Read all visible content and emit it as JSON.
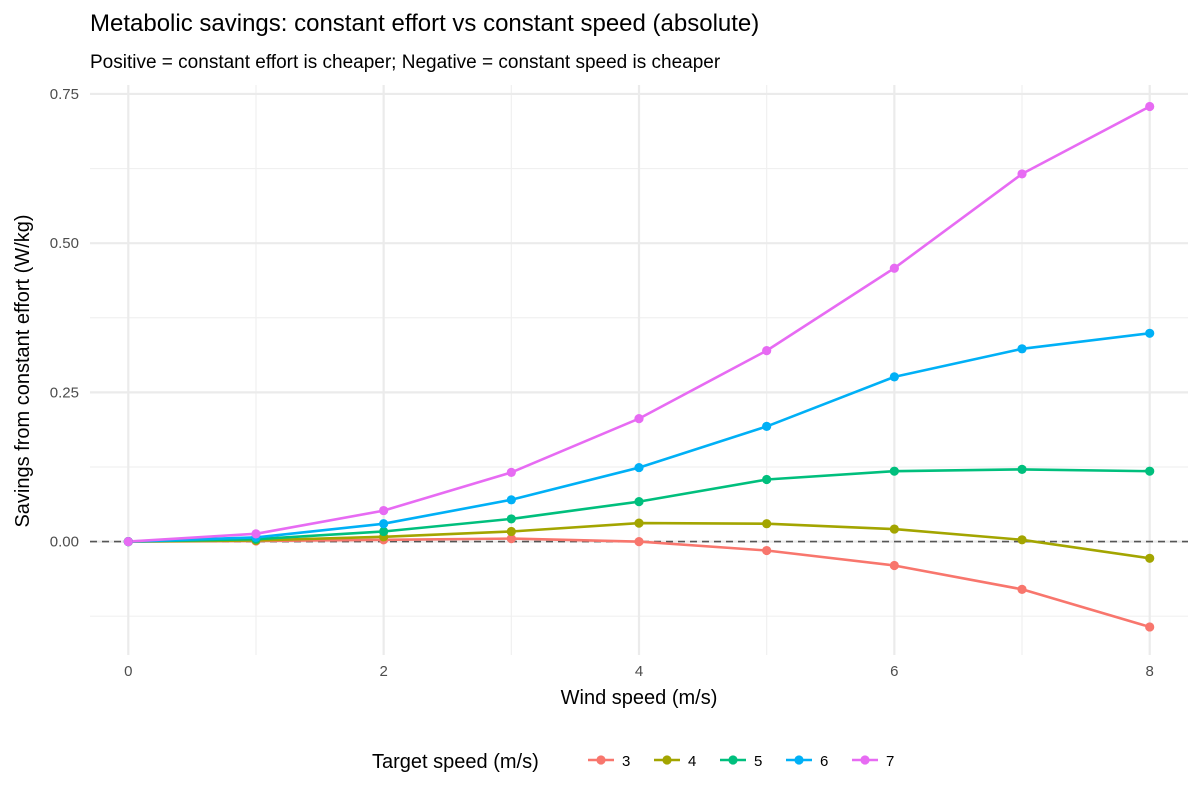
{
  "chart_data": {
    "type": "line",
    "title": "Metabolic savings: constant effort vs constant speed (absolute)",
    "subtitle": "Positive = constant effort is cheaper; Negative = constant speed is cheaper",
    "xlabel": "Wind speed (m/s)",
    "ylabel": "Savings from constant effort (W/kg)",
    "xlim": [
      -0.3,
      8.3
    ],
    "ylim": [
      -0.19,
      0.765
    ],
    "x_ticks": [
      0,
      2,
      4,
      6,
      8
    ],
    "x_tick_labels": [
      "0",
      "2",
      "4",
      "6",
      "8"
    ],
    "y_ticks": [
      0.0,
      0.25,
      0.5,
      0.75
    ],
    "y_tick_labels": [
      "0.00",
      "0.25",
      "0.50",
      "0.75"
    ],
    "reference_line": {
      "y": 0,
      "style": "dashed"
    },
    "grid": true,
    "legend": {
      "title": "Target speed (m/s)",
      "position": "bottom"
    },
    "x": [
      0,
      1,
      2,
      3,
      4,
      5,
      6,
      7,
      8
    ],
    "series": [
      {
        "name": "3",
        "color": "#F8766D",
        "values": [
          0.0,
          0.001,
          0.003,
          0.005,
          0.0,
          -0.015,
          -0.04,
          -0.08,
          -0.143
        ]
      },
      {
        "name": "4",
        "color": "#A3A500",
        "values": [
          0.0,
          0.002,
          0.008,
          0.017,
          0.031,
          0.03,
          0.021,
          0.003,
          -0.028
        ]
      },
      {
        "name": "5",
        "color": "#00BF7D",
        "values": [
          0.0,
          0.004,
          0.017,
          0.038,
          0.067,
          0.104,
          0.118,
          0.121,
          0.118
        ]
      },
      {
        "name": "6",
        "color": "#00B0F6",
        "values": [
          0.0,
          0.007,
          0.03,
          0.07,
          0.124,
          0.193,
          0.276,
          0.323,
          0.349
        ]
      },
      {
        "name": "7",
        "color": "#E76BF3",
        "values": [
          0.0,
          0.013,
          0.052,
          0.116,
          0.206,
          0.32,
          0.458,
          0.616,
          0.729
        ]
      }
    ]
  }
}
